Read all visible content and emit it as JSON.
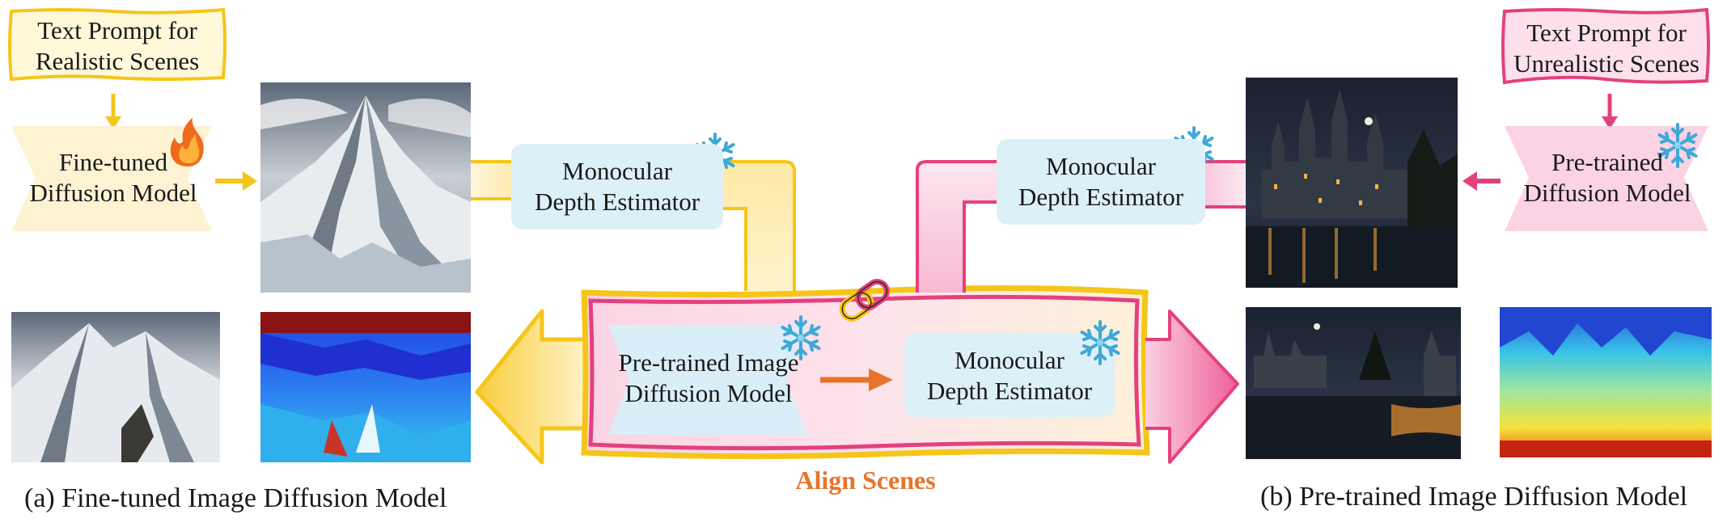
{
  "left": {
    "prompt": [
      "Text Prompt for",
      "Realistic Scenes"
    ],
    "model": [
      "Fine-tuned",
      "Diffusion Model"
    ],
    "depth": [
      "Monocular",
      "Depth Estimator"
    ],
    "caption": "(a) Fine-tuned Image Diffusion Model",
    "colors": {
      "accent": "#f5c518",
      "fill": "#fdf3d3"
    }
  },
  "right": {
    "prompt": [
      "Text Prompt for",
      "Unrealistic Scenes"
    ],
    "model": [
      "Pre-trained",
      "Diffusion Model"
    ],
    "depth": [
      "Monocular",
      "Depth Estimator"
    ],
    "caption": "(b) Pre-trained Image Diffusion Model",
    "colors": {
      "accent": "#e4407f",
      "fill": "#fbd3e4"
    }
  },
  "center": {
    "model": [
      "Pre-trained Image",
      "Diffusion Model"
    ],
    "depth": [
      "Monocular",
      "Depth Estimator"
    ],
    "label": "Align Scenes",
    "label_color": "#e8742a"
  },
  "icons": [
    "fire-icon",
    "snowflake-icon",
    "chain-link-icon"
  ]
}
